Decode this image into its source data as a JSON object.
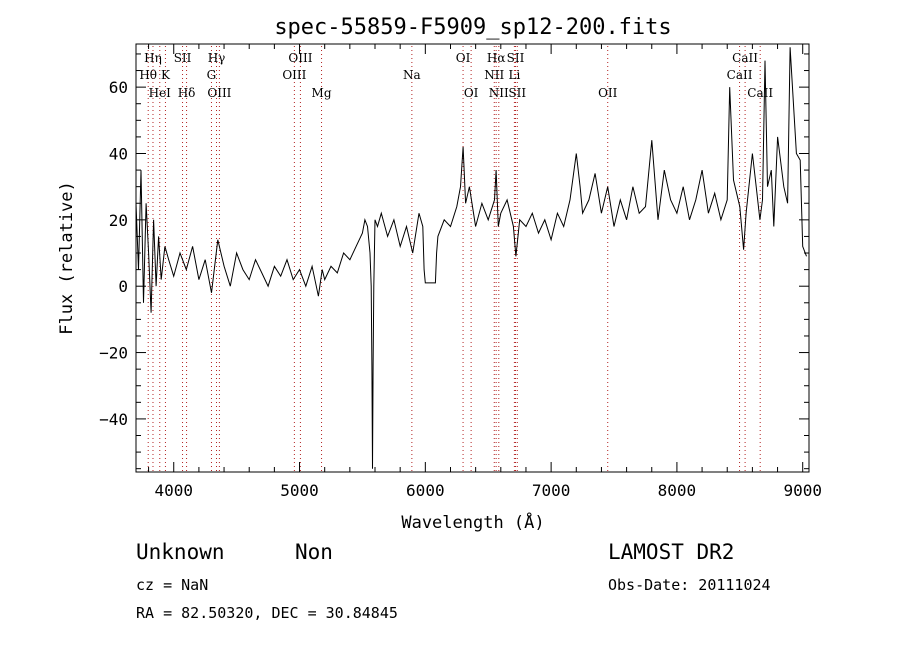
{
  "chart_data": {
    "type": "line",
    "title": "spec-55859-F5909_sp12-200.fits",
    "xlabel": "Wavelength (Å)",
    "ylabel": "Flux (relative)",
    "xlim": [
      3700,
      9050
    ],
    "ylim": [
      -56,
      73
    ],
    "xticks": [
      4000,
      5000,
      6000,
      7000,
      8000,
      9000
    ],
    "yticks": [
      -40,
      -20,
      0,
      20,
      40,
      60
    ],
    "grid": false,
    "series": [
      {
        "x": [
          3700,
          3720,
          3740,
          3760,
          3780,
          3800,
          3820,
          3840,
          3860,
          3880,
          3900,
          3930,
          3960,
          4000,
          4050,
          4100,
          4150,
          4200,
          4250,
          4300,
          4350,
          4400,
          4450,
          4500,
          4550,
          4600,
          4650,
          4700,
          4750,
          4800,
          4850,
          4900,
          4950,
          5000,
          5050,
          5100,
          5150,
          5180,
          5200,
          5250,
          5300,
          5350,
          5400,
          5450,
          5500,
          5520,
          5540,
          5560,
          5570,
          5575,
          5580,
          5585,
          5590,
          5600,
          5620,
          5650,
          5700,
          5750,
          5800,
          5850,
          5900,
          5950,
          5980,
          5990,
          6000,
          6020,
          6050,
          6080,
          6090,
          6100,
          6150,
          6200,
          6250,
          6280,
          6300,
          6320,
          6350,
          6400,
          6450,
          6500,
          6550,
          6563,
          6580,
          6600,
          6650,
          6700,
          6720,
          6750,
          6800,
          6850,
          6900,
          6950,
          7000,
          7050,
          7100,
          7150,
          7200,
          7230,
          7250,
          7300,
          7350,
          7400,
          7450,
          7500,
          7550,
          7600,
          7650,
          7700,
          7750,
          7800,
          7850,
          7900,
          7950,
          8000,
          8050,
          8100,
          8150,
          8200,
          8250,
          8300,
          8350,
          8400,
          8420,
          8450,
          8500,
          8530,
          8550,
          8600,
          8630,
          8660,
          8680,
          8700,
          8720,
          8750,
          8770,
          8800,
          8850,
          8880,
          8900,
          8950,
          8980,
          9000,
          9030
        ],
        "y": [
          25,
          5,
          35,
          -5,
          25,
          10,
          -8,
          20,
          0,
          15,
          2,
          12,
          8,
          3,
          10,
          5,
          12,
          2,
          8,
          -2,
          14,
          6,
          0,
          10,
          5,
          2,
          8,
          4,
          0,
          6,
          3,
          8,
          2,
          5,
          0,
          6,
          -3,
          5,
          2,
          6,
          4,
          10,
          8,
          12,
          16,
          20,
          18,
          10,
          0,
          -24,
          -55,
          -24,
          0,
          20,
          18,
          22,
          15,
          20,
          12,
          18,
          10,
          22,
          18,
          5,
          1,
          1,
          1,
          1,
          10,
          15,
          20,
          18,
          24,
          30,
          42,
          25,
          30,
          18,
          25,
          20,
          26,
          35,
          18,
          22,
          26,
          18,
          9,
          20,
          18,
          22,
          16,
          20,
          14,
          22,
          18,
          26,
          40,
          30,
          22,
          26,
          34,
          22,
          30,
          18,
          26,
          20,
          30,
          22,
          24,
          44,
          20,
          35,
          26,
          22,
          30,
          20,
          26,
          35,
          22,
          28,
          20,
          26,
          60,
          32,
          24,
          11,
          22,
          40,
          30,
          20,
          26,
          68,
          30,
          35,
          18,
          45,
          30,
          25,
          72,
          40,
          38,
          12,
          9
        ]
      }
    ],
    "annotations": [
      {
        "x": 3835,
        "label": "Hη",
        "row": 1
      },
      {
        "x": 3797,
        "label": "Hθ",
        "row": 2
      },
      {
        "x": 3889,
        "label": "HeI",
        "row": 3
      },
      {
        "x": 3934,
        "label": "K",
        "row": 2
      },
      {
        "x": 4070,
        "label": "SII",
        "row": 1
      },
      {
        "x": 4102,
        "label": "Hδ",
        "row": 3
      },
      {
        "x": 4340,
        "label": "Hγ",
        "row": 1
      },
      {
        "x": 4300,
        "label": "G",
        "row": 2
      },
      {
        "x": 4363,
        "label": "OIII",
        "row": 3
      },
      {
        "x": 5007,
        "label": "OIII",
        "row": 1
      },
      {
        "x": 4959,
        "label": "OIII",
        "row": 2
      },
      {
        "x": 5175,
        "label": "Mg",
        "row": 3
      },
      {
        "x": 5893,
        "label": "Na",
        "row": 2
      },
      {
        "x": 6300,
        "label": "OI",
        "row": 1
      },
      {
        "x": 6364,
        "label": "OI",
        "row": 3
      },
      {
        "x": 6563,
        "label": "Hα",
        "row": 1
      },
      {
        "x": 6717,
        "label": "SII",
        "row": 1
      },
      {
        "x": 6548,
        "label": "NII",
        "row": 2
      },
      {
        "x": 6708,
        "label": "Li",
        "row": 2
      },
      {
        "x": 6584,
        "label": "NII",
        "row": 3
      },
      {
        "x": 6731,
        "label": "SII",
        "row": 3
      },
      {
        "x": 7450,
        "label": "OII",
        "row": 3
      },
      {
        "x": 8542,
        "label": "CaII",
        "row": 1
      },
      {
        "x": 8498,
        "label": "CaII",
        "row": 2
      },
      {
        "x": 8662,
        "label": "CaII",
        "row": 3
      }
    ]
  },
  "info": {
    "classification": "Unknown",
    "subclass": "Non",
    "survey": "LAMOST DR2",
    "redshift": "cz = NaN",
    "obs_date": "Obs-Date: 20111024",
    "coords": "RA =  82.50320, DEC =  30.84845"
  }
}
